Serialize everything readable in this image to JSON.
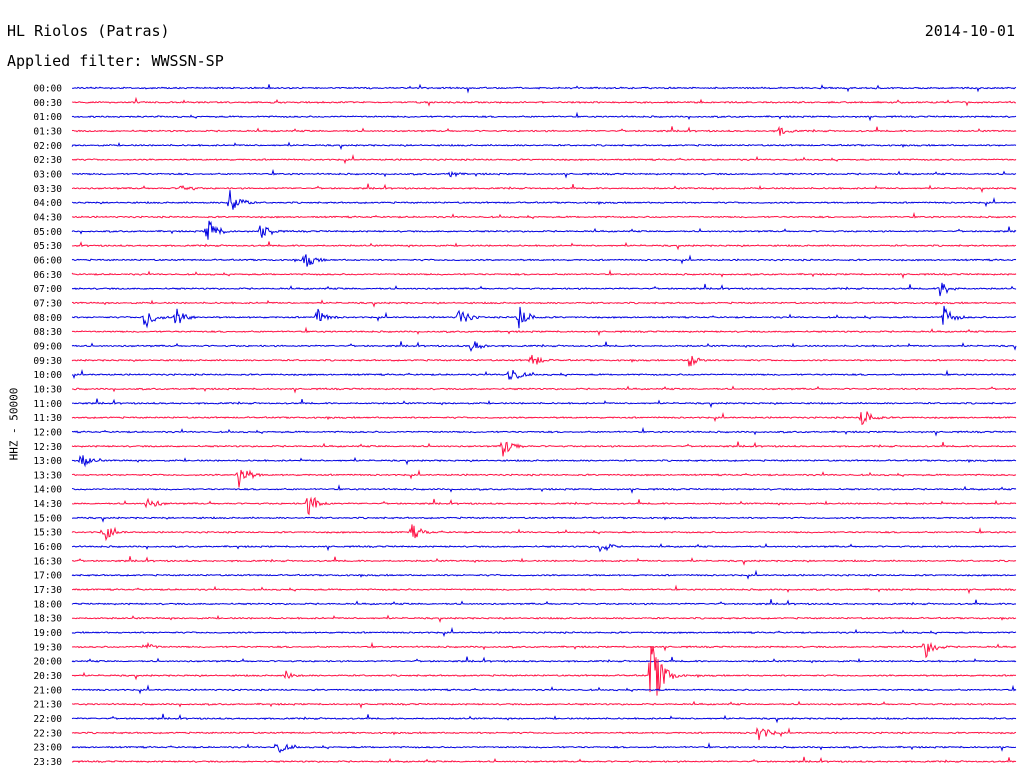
{
  "header": {
    "station": "HL Riolos (Patras)",
    "date": "2014-10-01",
    "filter": "Applied filter: WWSSN-SP"
  },
  "chart_data": {
    "type": "line",
    "title": "HL Riolos (Patras)",
    "ylabel": "HHZ - 50000",
    "rows": [
      "00:00",
      "00:30",
      "01:00",
      "01:30",
      "02:00",
      "02:30",
      "03:00",
      "03:30",
      "04:00",
      "04:30",
      "05:00",
      "05:30",
      "06:00",
      "06:30",
      "07:00",
      "07:30",
      "08:00",
      "08:30",
      "09:00",
      "09:30",
      "10:00",
      "10:30",
      "11:00",
      "11:30",
      "12:00",
      "12:30",
      "13:00",
      "13:30",
      "14:00",
      "14:30",
      "15:00",
      "15:30",
      "16:00",
      "16:30",
      "17:00",
      "17:30",
      "18:00",
      "18:30",
      "19:00",
      "19:30",
      "20:00",
      "20:30",
      "21:00",
      "21:30",
      "22:00",
      "22:30",
      "23:00",
      "23:30"
    ],
    "row_minutes": 30,
    "colors": {
      "even_rows": "#0000e0",
      "odd_rows": "#ff1144"
    },
    "events": [
      {
        "row": 3,
        "minute": 22.5,
        "amplitude": 5
      },
      {
        "row": 6,
        "minute": 12,
        "amplitude": 4
      },
      {
        "row": 7,
        "minute": 3.5,
        "amplitude": 6
      },
      {
        "row": 8,
        "minute": 5,
        "amplitude": 15
      },
      {
        "row": 10,
        "minute": 4.3,
        "amplitude": 14
      },
      {
        "row": 10,
        "minute": 6,
        "amplitude": 10
      },
      {
        "row": 12,
        "minute": 7.4,
        "amplitude": 9
      },
      {
        "row": 14,
        "minute": 27.6,
        "amplitude": 9
      },
      {
        "row": 16,
        "minute": 2.3,
        "amplitude": 13
      },
      {
        "row": 16,
        "minute": 3.3,
        "amplitude": 10
      },
      {
        "row": 16,
        "minute": 7.8,
        "amplitude": 9
      },
      {
        "row": 16,
        "minute": 12.3,
        "amplitude": 10
      },
      {
        "row": 16,
        "minute": 14.2,
        "amplitude": 12
      },
      {
        "row": 16,
        "minute": 27.7,
        "amplitude": 12
      },
      {
        "row": 18,
        "minute": 12.7,
        "amplitude": 7
      },
      {
        "row": 19,
        "minute": 14.6,
        "amplitude": 8
      },
      {
        "row": 19,
        "minute": 19.6,
        "amplitude": 8
      },
      {
        "row": 20,
        "minute": 13.9,
        "amplitude": 10
      },
      {
        "row": 23,
        "minute": 25.1,
        "amplitude": 11
      },
      {
        "row": 25,
        "minute": 13.7,
        "amplitude": 12
      },
      {
        "row": 26,
        "minute": 0.3,
        "amplitude": 8
      },
      {
        "row": 27,
        "minute": 5.3,
        "amplitude": 14
      },
      {
        "row": 29,
        "minute": 2.4,
        "amplitude": 8
      },
      {
        "row": 29,
        "minute": 7.5,
        "amplitude": 12
      },
      {
        "row": 31,
        "minute": 1.0,
        "amplitude": 10
      },
      {
        "row": 31,
        "minute": 10.8,
        "amplitude": 9
      },
      {
        "row": 32,
        "minute": 16.8,
        "amplitude": 7
      },
      {
        "row": 39,
        "minute": 2.3,
        "amplitude": 5
      },
      {
        "row": 39,
        "minute": 27.1,
        "amplitude": 13
      },
      {
        "row": 41,
        "minute": 6.8,
        "amplitude": 5
      },
      {
        "row": 41,
        "minute": 18.4,
        "amplitude": 42
      },
      {
        "row": 45,
        "minute": 21.8,
        "amplitude": 10
      },
      {
        "row": 46,
        "minute": 6.5,
        "amplitude": 8
      }
    ]
  }
}
